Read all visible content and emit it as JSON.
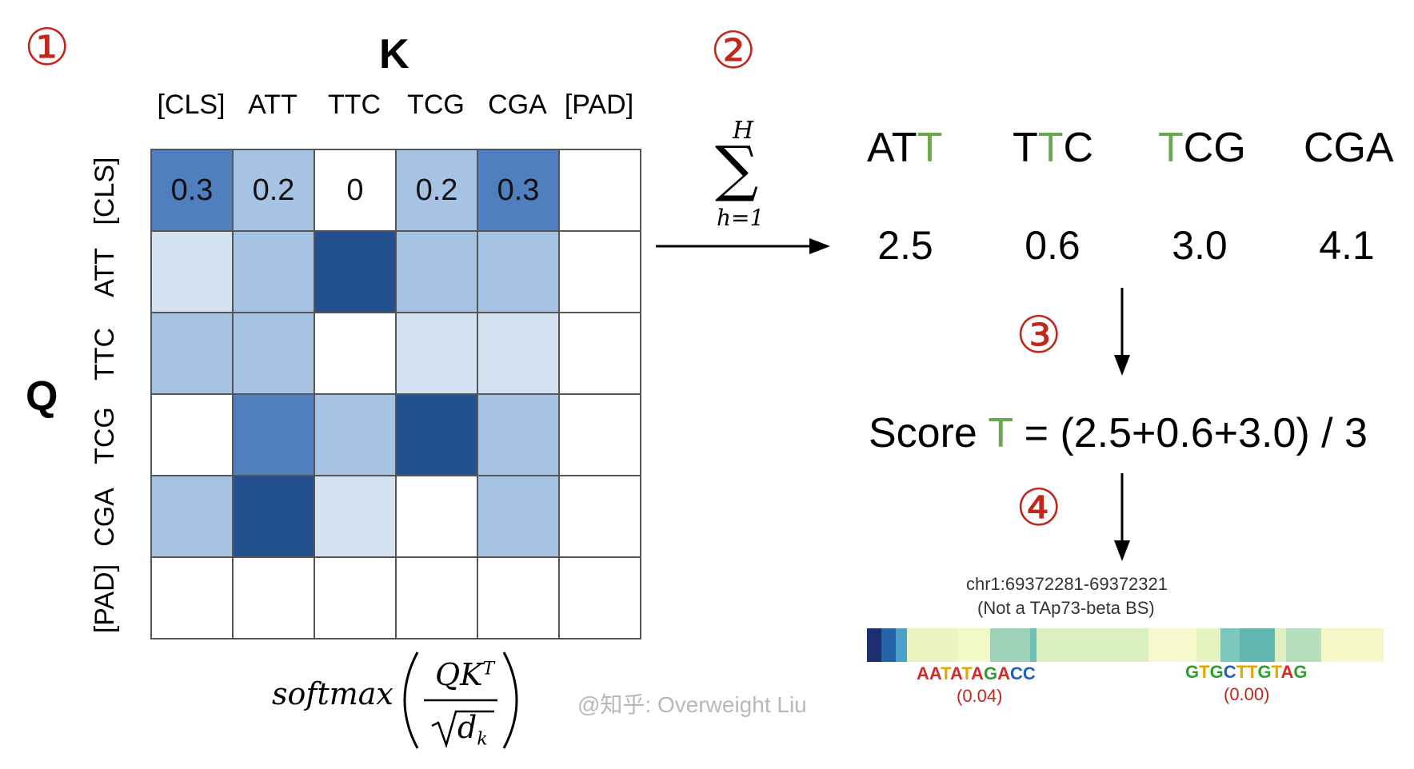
{
  "steps": {
    "s1": "①",
    "s2": "②",
    "s3": "③",
    "s4": "④"
  },
  "matrix": {
    "key_label": "K",
    "query_label": "Q",
    "columns": [
      "[CLS]",
      "ATT",
      "TTC",
      "TCG",
      "CGA",
      "[PAD]"
    ],
    "rows": [
      "[CLS]",
      "ATT",
      "TTC",
      "TCG",
      "CGA",
      "[PAD]"
    ],
    "first_row_values": [
      "0.3",
      "0.2",
      "0",
      "0.2",
      "0.3",
      ""
    ],
    "intensity": [
      [
        3,
        2,
        0,
        2,
        3,
        0
      ],
      [
        1,
        2,
        4,
        2,
        2,
        0
      ],
      [
        2,
        2,
        0,
        1,
        1,
        0
      ],
      [
        0,
        3,
        2,
        4,
        2,
        0
      ],
      [
        2,
        4,
        1,
        0,
        2,
        0
      ],
      [
        0,
        0,
        0,
        0,
        0,
        0
      ]
    ],
    "palette": [
      "#ffffff",
      "#d3e1f1",
      "#a7c3e4",
      "#4f7fbf",
      "#23508e"
    ]
  },
  "formula": {
    "softmax": "softmax",
    "numerator": "QK",
    "numerator_sup": "T",
    "denominator": "d",
    "denominator_sub": "k"
  },
  "sum": {
    "symbol": "∑",
    "upper": "H",
    "lower": "h=1"
  },
  "kmers": [
    {
      "parts": [
        {
          "t": "AT",
          "h": false
        },
        {
          "t": "T",
          "h": true
        }
      ],
      "value": "2.5"
    },
    {
      "parts": [
        {
          "t": "T",
          "h": false
        },
        {
          "t": "T",
          "h": true
        },
        {
          "t": "C",
          "h": false
        }
      ],
      "value": "0.6"
    },
    {
      "parts": [
        {
          "t": "T",
          "h": true
        },
        {
          "t": "CG",
          "h": false
        }
      ],
      "value": "3.0"
    },
    {
      "parts": [
        {
          "t": "CGA",
          "h": false
        }
      ],
      "value": "4.1"
    }
  ],
  "score": {
    "prefix": "Score ",
    "token": "T",
    "suffix": " = (2.5+0.6+3.0) / 3"
  },
  "genome": {
    "locus": "chr1:69372281-69372321",
    "note": "(Not a TAp73-beta BS)",
    "motif1": "AATATAGACC",
    "motif1_value": "(0.04)",
    "motif2": "GTGCTTGTAG",
    "motif2_value": "(0.00)",
    "track_colors": [
      "#1d2f6f",
      "#2463a6",
      "#4aa0c9",
      "#eaf4c3",
      "#f2f8c8",
      "#9fd0b8",
      "#6ec0b8",
      "#d9efbd",
      "#f6f9cc",
      "#e6f2c0",
      "#7cc6bb",
      "#5fb7b0",
      "#dff0c0",
      "#b5dfbd",
      "#f4f8c9"
    ]
  },
  "watermark": "@知乎: Overweight Liu"
}
